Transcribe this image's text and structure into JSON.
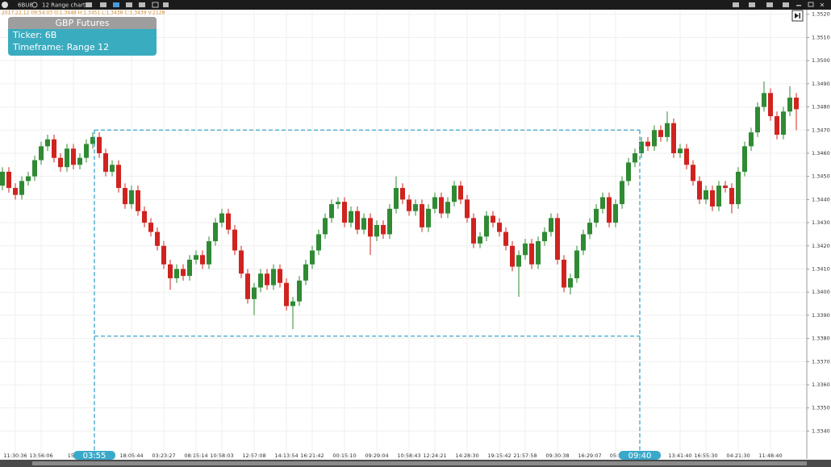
{
  "app": {
    "symbol": "6BU8",
    "chart_name": "12 Range chart",
    "ohlc_info": "2017.22.12 09:54:03  O:1.3448  H:1.3451  L:1.3438  C:1.3439  V:2128"
  },
  "info_box": {
    "title": "GBP Futures",
    "lines": [
      "Ticker: 6B",
      "Timeframe: Range 12"
    ]
  },
  "chart_data": {
    "type": "candlestick",
    "categories": [
      null,
      null,
      "11:30:36",
      null,
      null,
      null,
      "13:56:06",
      null,
      null,
      null,
      null,
      "15:1",
      null,
      null,
      null,
      null,
      null,
      null,
      null,
      null,
      "18:05:44",
      null,
      null,
      null,
      null,
      "03:23:27",
      null,
      null,
      null,
      null,
      "08:15:14",
      null,
      null,
      null,
      "10:58:03",
      null,
      null,
      null,
      null,
      "12:57:08",
      null,
      null,
      null,
      null,
      "14:13:54",
      null,
      null,
      null,
      "16:21:42",
      null,
      null,
      null,
      null,
      "00:15:10",
      null,
      null,
      null,
      null,
      "09:29:04",
      null,
      null,
      null,
      null,
      "10:58:43",
      null,
      null,
      null,
      "12:24:21",
      null,
      null,
      null,
      null,
      "14:28:30",
      null,
      null,
      null,
      null,
      "19:15:42",
      null,
      null,
      null,
      "21:57:58",
      null,
      null,
      null,
      null,
      "09:30:38",
      null,
      null,
      null,
      null,
      "16:29:07",
      null,
      null,
      null,
      "05:5",
      null,
      null,
      null,
      null,
      null,
      null,
      null,
      null,
      null,
      "13:41:40",
      null,
      null,
      null,
      "16:55:30",
      null,
      null,
      null,
      null,
      "04:21:30",
      null,
      null,
      null,
      null,
      "11:48:40",
      null,
      null,
      null,
      null
    ],
    "open": [
      1.3446,
      1.3452,
      1.3445,
      1.3442,
      1.3448,
      1.345,
      1.3457,
      1.3463,
      1.3466,
      1.3458,
      1.3454,
      1.3462,
      1.3455,
      1.3458,
      1.3464,
      1.3467,
      1.346,
      1.3452,
      1.3455,
      1.3445,
      1.3438,
      1.3444,
      1.3435,
      1.343,
      1.3426,
      1.342,
      1.3412,
      1.3406,
      1.341,
      1.3407,
      1.3414,
      1.3416,
      1.3412,
      1.3422,
      1.343,
      1.3434,
      1.3427,
      1.3418,
      1.3408,
      1.3397,
      1.3402,
      1.3408,
      1.3403,
      1.341,
      1.3404,
      1.3394,
      1.3396,
      1.3405,
      1.3412,
      1.3418,
      1.3425,
      1.3432,
      1.3438,
      1.3439,
      1.343,
      1.3435,
      1.3427,
      1.3432,
      1.3424,
      1.3429,
      1.3425,
      1.3436,
      1.3445,
      1.344,
      1.3435,
      1.3438,
      1.3428,
      1.3436,
      1.3441,
      1.3434,
      1.3439,
      1.3446,
      1.344,
      1.3432,
      1.3421,
      1.3424,
      1.3433,
      1.343,
      1.3426,
      1.342,
      1.3411,
      1.3416,
      1.3421,
      1.3412,
      1.3422,
      1.3426,
      1.3432,
      1.3414,
      1.3402,
      1.3406,
      1.3418,
      1.3425,
      1.343,
      1.3436,
      1.3441,
      1.343,
      1.3438,
      1.3448,
      1.3456,
      1.346,
      1.3465,
      1.3463,
      1.347,
      1.3467,
      1.3473,
      1.346,
      1.3462,
      1.3455,
      1.3448,
      1.344,
      1.3444,
      1.3437,
      1.3446,
      1.3445,
      1.3438,
      1.3452,
      1.3463,
      1.3469,
      1.348,
      1.3486,
      1.3476,
      1.3468,
      1.3478,
      1.3484
    ],
    "high": [
      1.3454,
      1.3454,
      1.3447,
      1.345,
      1.3452,
      1.3459,
      1.3465,
      1.3468,
      1.3468,
      1.346,
      1.3464,
      1.3464,
      1.346,
      1.3466,
      1.3469,
      1.3469,
      1.3462,
      1.3457,
      1.3457,
      1.3447,
      1.3446,
      1.3446,
      1.3437,
      1.3432,
      1.3428,
      1.3422,
      1.3414,
      1.3412,
      1.3412,
      1.3416,
      1.3418,
      1.3418,
      1.3424,
      1.3432,
      1.3436,
      1.3436,
      1.3429,
      1.342,
      1.341,
      1.3404,
      1.341,
      1.341,
      1.3412,
      1.3412,
      1.3406,
      1.3398,
      1.3407,
      1.3414,
      1.342,
      1.3427,
      1.3434,
      1.344,
      1.3441,
      1.3441,
      1.3437,
      1.3437,
      1.3434,
      1.3434,
      1.3431,
      1.3431,
      1.3438,
      1.345,
      1.3447,
      1.3442,
      1.344,
      1.344,
      1.3438,
      1.3443,
      1.3443,
      1.3441,
      1.3448,
      1.3448,
      1.3442,
      1.3434,
      1.3426,
      1.3435,
      1.3435,
      1.3432,
      1.3428,
      1.3422,
      1.3418,
      1.3423,
      1.3423,
      1.3424,
      1.3428,
      1.3434,
      1.3434,
      1.3416,
      1.3408,
      1.342,
      1.3427,
      1.3432,
      1.3438,
      1.3443,
      1.3443,
      1.344,
      1.345,
      1.3458,
      1.3462,
      1.3467,
      1.3467,
      1.3472,
      1.3472,
      1.3478,
      1.3475,
      1.3464,
      1.3464,
      1.3457,
      1.345,
      1.3446,
      1.3446,
      1.3448,
      1.3448,
      1.3447,
      1.3454,
      1.3465,
      1.3471,
      1.3482,
      1.3491,
      1.3488,
      1.3478,
      1.348,
      1.3489,
      1.3486
    ],
    "low": [
      1.3444,
      1.3443,
      1.344,
      1.344,
      1.3446,
      1.3448,
      1.3455,
      1.3461,
      1.3456,
      1.3452,
      1.3452,
      1.3453,
      1.3453,
      1.3456,
      1.3462,
      1.3458,
      1.345,
      1.345,
      1.3443,
      1.3436,
      1.3436,
      1.3433,
      1.3428,
      1.3424,
      1.3418,
      1.341,
      1.3401,
      1.3404,
      1.3405,
      1.3405,
      1.3412,
      1.341,
      1.341,
      1.342,
      1.3428,
      1.3425,
      1.3416,
      1.3406,
      1.3395,
      1.339,
      1.34,
      1.3401,
      1.3401,
      1.3402,
      1.3392,
      1.3384,
      1.3394,
      1.3403,
      1.341,
      1.3416,
      1.3423,
      1.343,
      1.3436,
      1.3428,
      1.3428,
      1.3425,
      1.3425,
      1.3416,
      1.3422,
      1.3423,
      1.3423,
      1.3434,
      1.3438,
      1.3433,
      1.3433,
      1.3426,
      1.3426,
      1.3434,
      1.3432,
      1.3432,
      1.3437,
      1.3438,
      1.343,
      1.3419,
      1.3419,
      1.3422,
      1.3428,
      1.3424,
      1.3418,
      1.3409,
      1.3398,
      1.3414,
      1.341,
      1.341,
      1.342,
      1.3424,
      1.3412,
      1.34,
      1.3399,
      1.3404,
      1.3416,
      1.3423,
      1.3428,
      1.3434,
      1.3428,
      1.3428,
      1.3436,
      1.3446,
      1.3454,
      1.3458,
      1.3461,
      1.3461,
      1.3465,
      1.3465,
      1.3458,
      1.3458,
      1.3453,
      1.3446,
      1.3438,
      1.3438,
      1.3435,
      1.3435,
      1.3443,
      1.3434,
      1.3436,
      1.345,
      1.3461,
      1.3467,
      1.3478,
      1.3474,
      1.3466,
      1.3466,
      1.3476,
      1.347
    ],
    "close": [
      1.3452,
      1.3445,
      1.3442,
      1.3448,
      1.345,
      1.3457,
      1.3463,
      1.3466,
      1.3458,
      1.3454,
      1.3462,
      1.3455,
      1.3458,
      1.3464,
      1.3467,
      1.346,
      1.3452,
      1.3455,
      1.3445,
      1.3438,
      1.3444,
      1.3435,
      1.343,
      1.3426,
      1.342,
      1.3412,
      1.3406,
      1.341,
      1.3407,
      1.3414,
      1.3416,
      1.3412,
      1.3422,
      1.343,
      1.3434,
      1.3427,
      1.3418,
      1.3408,
      1.3397,
      1.3402,
      1.3408,
      1.3403,
      1.341,
      1.3404,
      1.3394,
      1.3396,
      1.3405,
      1.3412,
      1.3418,
      1.3425,
      1.3432,
      1.3438,
      1.3439,
      1.343,
      1.3435,
      1.3427,
      1.3432,
      1.3424,
      1.3429,
      1.3425,
      1.3436,
      1.3445,
      1.344,
      1.3435,
      1.3438,
      1.3428,
      1.3436,
      1.3441,
      1.3434,
      1.3439,
      1.3446,
      1.344,
      1.3432,
      1.3421,
      1.3424,
      1.3433,
      1.343,
      1.3426,
      1.342,
      1.3411,
      1.3416,
      1.3421,
      1.3412,
      1.3422,
      1.3426,
      1.3432,
      1.3414,
      1.3402,
      1.3406,
      1.3418,
      1.3425,
      1.343,
      1.3436,
      1.3441,
      1.343,
      1.3438,
      1.3448,
      1.3456,
      1.346,
      1.3465,
      1.3463,
      1.347,
      1.3467,
      1.3473,
      1.346,
      1.3462,
      1.3455,
      1.3448,
      1.344,
      1.3444,
      1.3437,
      1.3446,
      1.3445,
      1.3438,
      1.3452,
      1.3463,
      1.3469,
      1.348,
      1.3486,
      1.3476,
      1.3468,
      1.3478,
      1.3484,
      1.3479
    ],
    "up_color": "#2f8a33",
    "down_color": "#d0231f",
    "ylim": [
      1.3329,
      1.3522
    ],
    "yticks": [
      {
        "value": 1.352,
        "label": "1.3520"
      },
      {
        "value": 1.351,
        "label": "1.3510"
      },
      {
        "value": 1.35,
        "label": "1.3500"
      },
      {
        "value": 1.349,
        "label": "1.3490"
      },
      {
        "value": 1.348,
        "label": "1.3480"
      },
      {
        "value": 1.347,
        "label": "1.3470"
      },
      {
        "value": 1.346,
        "label": "1.3460"
      },
      {
        "value": 1.345,
        "label": "1.3450"
      },
      {
        "value": 1.344,
        "label": "1.3440"
      },
      {
        "value": 1.343,
        "label": "1.3430"
      },
      {
        "value": 1.342,
        "label": "1.3420"
      },
      {
        "value": 1.341,
        "label": "1.3410"
      },
      {
        "value": 1.34,
        "label": "1.3400"
      },
      {
        "value": 1.339,
        "label": "1.3390"
      },
      {
        "value": 1.338,
        "label": "1.3380"
      },
      {
        "value": 1.337,
        "label": "1.3370"
      },
      {
        "value": 1.336,
        "label": "1.3360"
      },
      {
        "value": 1.335,
        "label": "1.3350"
      },
      {
        "value": 1.334,
        "label": "1.3340"
      }
    ],
    "grid": true,
    "selection": {
      "start_label": "03:55",
      "end_label": "09:40",
      "low": 1.3381,
      "high": 1.347
    }
  }
}
